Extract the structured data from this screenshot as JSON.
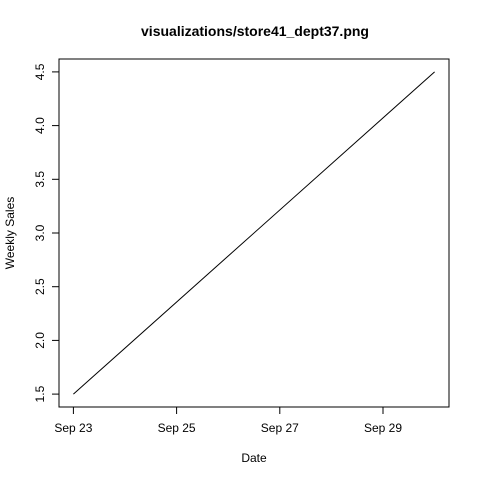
{
  "chart_data": {
    "type": "line",
    "title": "visualizations/store41_dept37.png",
    "xlabel": "Date",
    "ylabel": "Weekly Sales",
    "x": [
      "Sep 23",
      "Sep 30"
    ],
    "series": [
      {
        "values": [
          1.5,
          4.5
        ],
        "color": "#000000"
      }
    ],
    "x_ticks": [
      "Sep 23",
      "Sep 25",
      "Sep 27",
      "Sep 29"
    ],
    "y_ticks": [
      "1.5",
      "2.0",
      "2.5",
      "3.0",
      "3.5",
      "4.0",
      "4.5"
    ],
    "xlim": [
      "Sep 23",
      "Sep 30"
    ],
    "ylim": [
      1.5,
      4.5
    ],
    "grid": false,
    "legend": "none",
    "axis_color": "#000000",
    "background": "#ffffff"
  }
}
